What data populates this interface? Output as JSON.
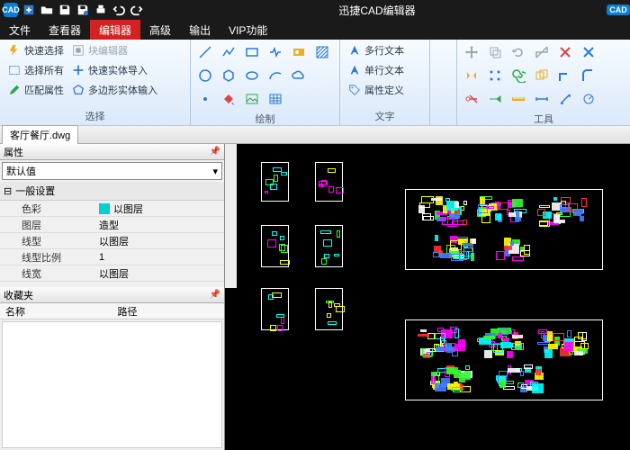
{
  "app": {
    "title": "迅捷CAD编辑器",
    "cad_badge": "CAD"
  },
  "menus": [
    "文件",
    "查看器",
    "编辑器",
    "高级",
    "输出",
    "VIP功能"
  ],
  "menu_active_index": 2,
  "ribbon": {
    "groups": [
      {
        "label": "选择",
        "items_col1": [
          {
            "icon": "bolt",
            "color": "#e8b020",
            "label": "快速选择",
            "disabled": false
          },
          {
            "icon": "rect-dash",
            "color": "#2a7ad4",
            "label": "选择所有",
            "disabled": false
          },
          {
            "icon": "pencil",
            "color": "#2aa84a",
            "label": "匹配属性",
            "disabled": false
          }
        ],
        "items_col2": [
          {
            "icon": "block",
            "color": "#9aa5b0",
            "label": "块编辑器",
            "disabled": true
          },
          {
            "icon": "plus",
            "color": "#2a7ad4",
            "label": "快速实体导入",
            "disabled": false
          },
          {
            "icon": "poly",
            "color": "#2a7ad4",
            "label": "多边形实体输入",
            "disabled": false
          }
        ]
      },
      {
        "label": "绘制",
        "icon_rows": 3
      },
      {
        "label": "文字",
        "items": [
          {
            "icon": "textA",
            "color": "#2a7ad4",
            "label": "多行文本"
          },
          {
            "icon": "textA",
            "color": "#2a7ad4",
            "label": "单行文本"
          },
          {
            "icon": "tag",
            "color": "#2a7ad4",
            "label": "属性定义"
          }
        ]
      },
      {
        "label": ""
      },
      {
        "label": "工具"
      }
    ],
    "draw_icons": {
      "row1": [
        {
          "t": "line",
          "c": "#2a7ad4"
        },
        {
          "t": "polyline",
          "c": "#2a7ad4"
        },
        {
          "t": "rect",
          "c": "#2a7ad4"
        },
        {
          "t": "zig",
          "c": "#2a7ad4"
        },
        {
          "t": "dimpic",
          "c": "#e8b020"
        },
        {
          "t": "hatch",
          "c": "#2a7ad4"
        }
      ],
      "row2": [
        {
          "t": "circle",
          "c": "#2a7ad4"
        },
        {
          "t": "hex",
          "c": "#2a7ad4"
        },
        {
          "t": "ellipse",
          "c": "#2a7ad4"
        },
        {
          "t": "arc",
          "c": "#2a7ad4"
        },
        {
          "t": "cloud",
          "c": "#2a7ad4"
        },
        {
          "t": "blank",
          "c": "#2a7ad4"
        }
      ],
      "row3": [
        {
          "t": "point",
          "c": "#2a7ad4"
        },
        {
          "t": "fill",
          "c": "#d44"
        },
        {
          "t": "image",
          "c": "#2aa84a"
        },
        {
          "t": "table",
          "c": "#2a7ad4"
        }
      ]
    },
    "tool_icons": {
      "row1": [
        {
          "t": "move",
          "c": "#9aa"
        },
        {
          "t": "copy",
          "c": "#9aa"
        },
        {
          "t": "rotate",
          "c": "#9aa"
        },
        {
          "t": "scale",
          "c": "#9aa"
        },
        {
          "t": "cross",
          "c": "#d44"
        },
        {
          "t": "crossb",
          "c": "#2a7ad4"
        }
      ],
      "row2": [
        {
          "t": "mirror",
          "c": "#e8b020"
        },
        {
          "t": "array",
          "c": "#2a7ad4"
        },
        {
          "t": "spiral",
          "c": "#2aa84a"
        },
        {
          "t": "offset",
          "c": "#e8b020"
        },
        {
          "t": "corner",
          "c": "#2a7ad4"
        },
        {
          "t": "corner2",
          "c": "#2a7ad4"
        }
      ],
      "row3": [
        {
          "t": "trim",
          "c": "#d44"
        },
        {
          "t": "extend",
          "c": "#2aa84a"
        },
        {
          "t": "ruler",
          "c": "#e8b020"
        },
        {
          "t": "dim",
          "c": "#2a7ad4"
        },
        {
          "t": "dim2",
          "c": "#2a7ad4"
        },
        {
          "t": "dim3",
          "c": "#2a7ad4"
        }
      ]
    }
  },
  "doc_tab": "客厅餐厅.dwg",
  "props_panel": {
    "title": "属性",
    "combo": "默认值",
    "section": "一般设置",
    "rows": [
      {
        "key": "色彩",
        "val": "以图层",
        "swatch": "#00d0d0"
      },
      {
        "key": "图层",
        "val": "造型"
      },
      {
        "key": "线型",
        "val": "以图层"
      },
      {
        "key": "线型比例",
        "val": "1"
      },
      {
        "key": "线宽",
        "val": "以图层"
      }
    ]
  },
  "favorites_panel": {
    "title": "收藏夹",
    "col1": "名称",
    "col2": "路径"
  },
  "cad_colors": {
    "white": "#ffffff",
    "cyan": "#00ffff",
    "yellow": "#ffff00",
    "magenta": "#ff00ff",
    "red": "#ff3030",
    "green": "#30ff30",
    "blue": "#4080ff"
  }
}
